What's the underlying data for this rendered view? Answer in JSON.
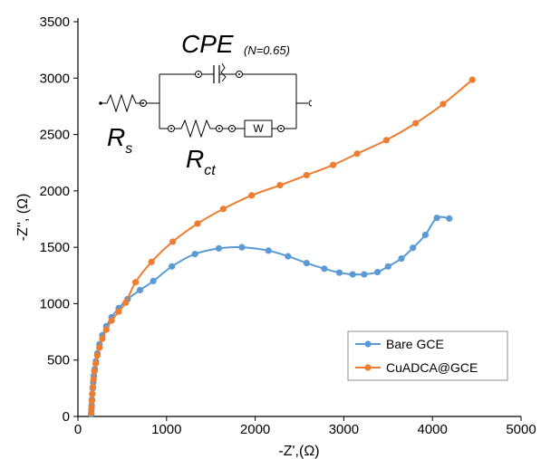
{
  "chart_data": {
    "type": "scatter",
    "xlabel": "-Z',(Ω)",
    "ylabel": "-Z'', (Ω)",
    "xlim": [
      0,
      5000
    ],
    "ylim": [
      0,
      3500
    ],
    "xticks": [
      0,
      1000,
      2000,
      3000,
      4000,
      5000
    ],
    "yticks": [
      0,
      500,
      1000,
      1500,
      2000,
      2500,
      3000,
      3500
    ],
    "grid": false,
    "legend_position": "bottom-right",
    "series": [
      {
        "name": "Bare GCE",
        "color": "#5B9BD5",
        "x": [
          150,
          152,
          155,
          158,
          162,
          167,
          173,
          180,
          190,
          203,
          220,
          243,
          275,
          320,
          380,
          460,
          560,
          700,
          850,
          1060,
          1320,
          1590,
          1850,
          2150,
          2370,
          2580,
          2780,
          2950,
          3100,
          3230,
          3380,
          3500,
          3650,
          3780,
          3920,
          4050,
          4190
        ],
        "y": [
          20,
          60,
          100,
          150,
          200,
          250,
          300,
          360,
          420,
          490,
          560,
          640,
          720,
          800,
          880,
          960,
          1040,
          1120,
          1200,
          1330,
          1440,
          1490,
          1500,
          1470,
          1420,
          1360,
          1310,
          1275,
          1260,
          1260,
          1280,
          1330,
          1400,
          1495,
          1610,
          1760,
          1755
        ]
      },
      {
        "name": "CuADCA@GCE",
        "color": "#ED7D31",
        "x": [
          150,
          153,
          157,
          162,
          168,
          176,
          186,
          200,
          218,
          242,
          275,
          320,
          380,
          460,
          540,
          650,
          830,
          1070,
          1350,
          1640,
          1960,
          2280,
          2580,
          2880,
          3150,
          3480,
          3810,
          4120,
          4450
        ],
        "y": [
          30,
          80,
          140,
          200,
          260,
          330,
          400,
          470,
          540,
          610,
          690,
          770,
          850,
          930,
          1010,
          1190,
          1370,
          1550,
          1710,
          1840,
          1960,
          2050,
          2140,
          2230,
          2330,
          2450,
          2600,
          2770,
          2985
        ]
      }
    ],
    "inset_circuit": {
      "cpe_label": "CPE",
      "cpe_note": "(N=0.65)",
      "rs_main": "R",
      "rs_sub": "s",
      "rct_main": "R",
      "rct_sub": "ct",
      "warburg_label": "W"
    }
  }
}
